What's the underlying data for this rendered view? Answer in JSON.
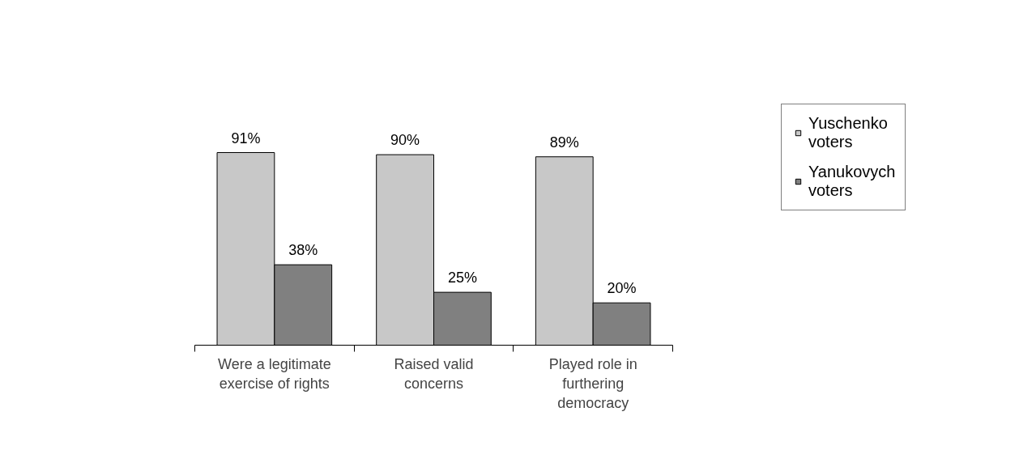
{
  "chart_data": {
    "type": "bar",
    "categories": [
      "Were a legitimate\nexercise of rights",
      "Raised valid\nconcerns",
      "Played role in\nfurthering\ndemocracy"
    ],
    "series": [
      {
        "name": "Yuschenko\nvoters",
        "color": "#c8c8c8",
        "values": [
          91,
          90,
          89
        ],
        "value_labels": [
          "91%",
          "90%",
          "89%"
        ]
      },
      {
        "name": "Yanukovych\nvoters",
        "color": "#808080",
        "values": [
          38,
          25,
          20
        ],
        "value_labels": [
          "38%",
          "25%",
          "20%"
        ]
      }
    ],
    "data_labels": true,
    "legend": "right",
    "grid": false
  }
}
